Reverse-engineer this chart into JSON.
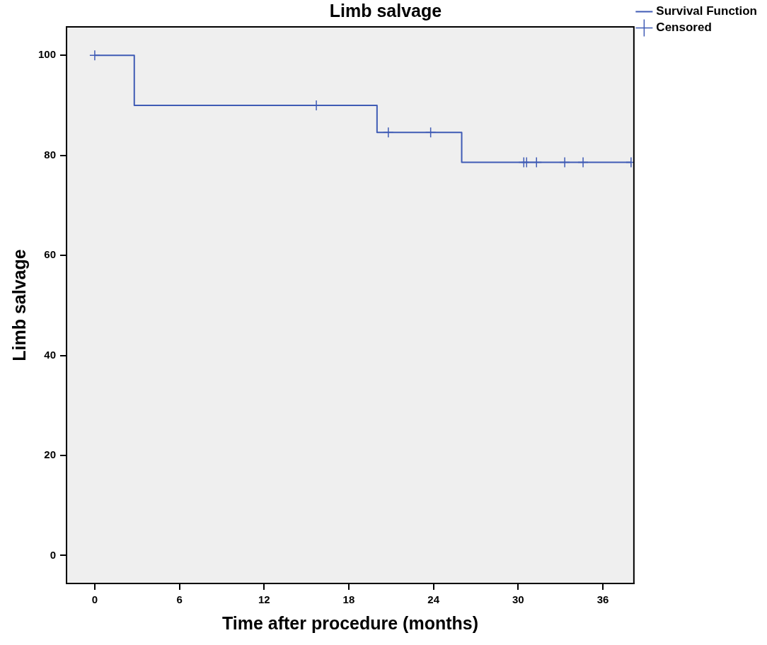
{
  "chart_data": {
    "type": "step",
    "title": "Limb salvage",
    "xlabel": "Time after procedure (months)",
    "ylabel": "Limb salvage",
    "xlim": [
      -2,
      38.2
    ],
    "xticks": [
      0,
      6,
      12,
      18,
      24,
      30,
      36
    ],
    "ylim": [
      -5.6,
      105.7
    ],
    "yticks": [
      0,
      20,
      40,
      60,
      80,
      100
    ],
    "grid": false,
    "legend": "top right",
    "series": [
      {
        "name": "Survival Function",
        "color": "#3f5bb5",
        "x": [
          0,
          2.8,
          20,
          26,
          38
        ],
        "values": [
          100,
          90,
          84.6,
          78.6,
          78.6
        ]
      },
      {
        "name": "Censored",
        "type": "scatter",
        "marker": "cross",
        "color": "#3f5bb5",
        "x": [
          0,
          15.7,
          20.8,
          23.8,
          30.4,
          30.6,
          31.3,
          33.3,
          34.6,
          38
        ],
        "values": [
          100,
          90,
          84.6,
          84.6,
          78.6,
          78.6,
          78.6,
          78.6,
          78.6,
          78.6
        ]
      }
    ]
  }
}
